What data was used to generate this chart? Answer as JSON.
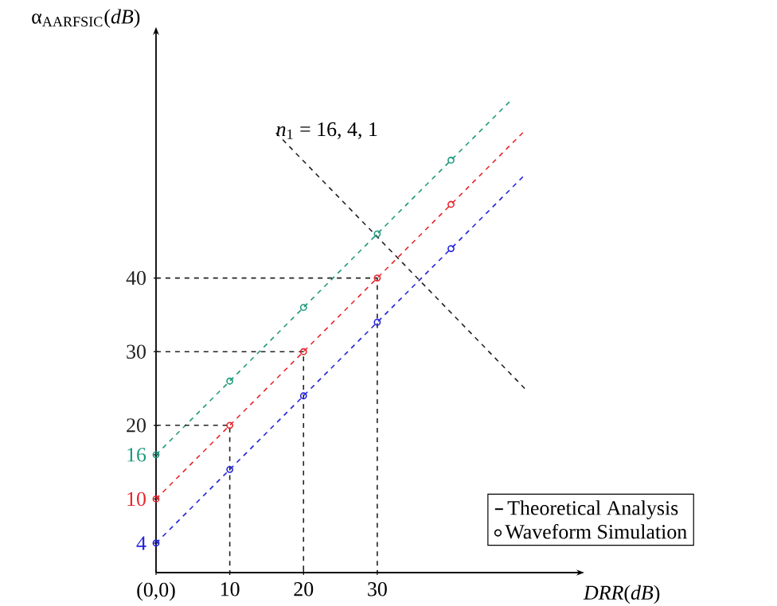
{
  "chart_data": {
    "type": "line",
    "xlabel": "*DRR*(*dB*)",
    "ylabel": "α$_{AARFSIC}$(*dB*)",
    "xlim": [
      0,
      57
    ],
    "ylim": [
      0,
      73
    ],
    "xticks": [
      {
        "value": 0,
        "label": "(0,0)"
      },
      10,
      20,
      30
    ],
    "yticks": [
      4,
      10,
      16,
      20,
      30,
      40
    ],
    "annotations": [
      {
        "text": "*n*$_{1}$ = 16, 4, 1",
        "x": 16,
        "y": 60
      },
      "Theoretical Analysis",
      "Waveform Simulation"
    ],
    "series": [
      {
        "type": "line",
        "color": "#2222dd",
        "line_style": "dashed",
        "x": [
          0,
          50
        ],
        "values": [
          4,
          54
        ]
      },
      {
        "type": "line",
        "color": "#e8262c",
        "line_style": "dashed",
        "x": [
          0,
          50
        ],
        "values": [
          10,
          60
        ]
      },
      {
        "type": "line",
        "color": "#1f9a7c",
        "line_style": "dashed",
        "x": [
          0,
          48
        ],
        "values": [
          16,
          64
        ]
      },
      {
        "type": "scatter",
        "color": "#2222dd",
        "marker": "circle",
        "x": [
          0,
          10,
          20,
          30,
          40
        ],
        "values": [
          4,
          14,
          24,
          34,
          44
        ]
      },
      {
        "type": "scatter",
        "color": "#e8262c",
        "marker": "circle",
        "x": [
          0,
          10,
          20,
          30,
          40
        ],
        "values": [
          10,
          20,
          30,
          40,
          50
        ]
      },
      {
        "type": "scatter",
        "color": "#1f9a7c",
        "marker": "circle",
        "x": [
          0,
          10,
          20,
          30,
          40
        ],
        "values": [
          16,
          26,
          36,
          46,
          56
        ]
      },
      {
        "type": "line",
        "color": "#222222",
        "line_style": "dashed",
        "x": [
          0,
          10,
          10
        ],
        "values": [
          20,
          20,
          0
        ]
      },
      {
        "type": "line",
        "color": "#222222",
        "line_style": "dashed",
        "x": [
          0,
          20,
          20
        ],
        "values": [
          30,
          30,
          0
        ]
      },
      {
        "type": "line",
        "color": "#222222",
        "line_style": "dashed",
        "x": [
          0,
          30,
          30
        ],
        "values": [
          40,
          40,
          0
        ]
      },
      {
        "type": "line",
        "color": "#222222",
        "line_style": "dashed",
        "x": [
          50,
          16
        ],
        "values": [
          25,
          60
        ]
      }
    ]
  }
}
